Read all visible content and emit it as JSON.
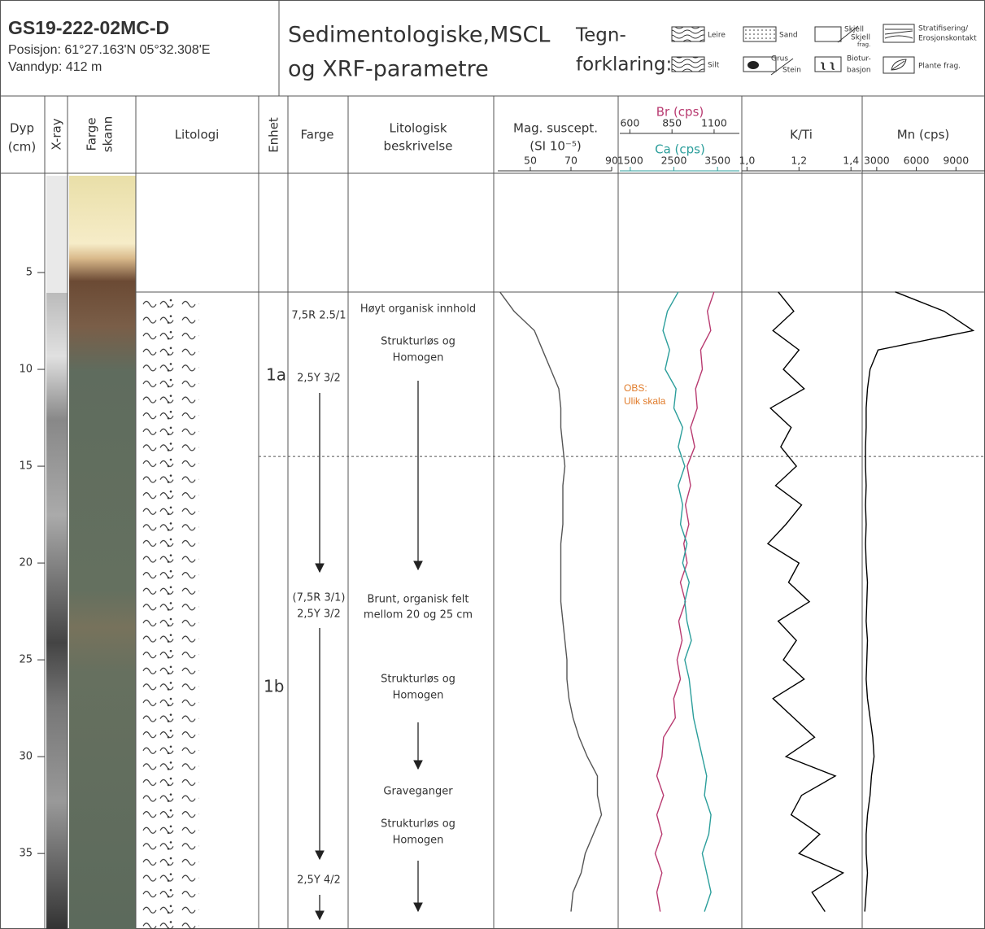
{
  "header": {
    "title": "GS19-222-02MC-D",
    "position": "Posisjon: 61°27.163'N 05°32.308'E",
    "water_depth": "Vanndyp: 412 m",
    "heading": [
      "Sedimentologiske,MSCL",
      "og XRF-parametre"
    ]
  },
  "legend": {
    "title": [
      "Tegn-",
      "forklaring:"
    ],
    "clay": "Leire",
    "silt": "Silt",
    "sand": "Sand",
    "gravel": [
      "Grus",
      "Stein"
    ],
    "shell": [
      "Skjell",
      "Skjell",
      "frag."
    ],
    "bioturbation": [
      "Biotur-",
      "basjon"
    ],
    "stratification": [
      "Stratifisering/",
      "Erosjonskontakt"
    ],
    "plant": "Plante frag."
  },
  "columns": {
    "depth": [
      "Dyp",
      "(cm)"
    ],
    "xray": "X-ray",
    "scan": [
      "Farge",
      "skann"
    ],
    "lithology": "Litologi",
    "unit": "Enhet",
    "color": "Farge",
    "description": [
      "Litologisk",
      "beskrivelse"
    ]
  },
  "depth_axis": {
    "ylim": [
      0,
      38.9
    ],
    "yticks": [
      5,
      10,
      15,
      20,
      25,
      30,
      35
    ],
    "unit_boundary": 14.5
  },
  "units": [
    "1a",
    "1b"
  ],
  "colors": [
    "7,5R 2.5/1",
    "2,5Y 3/2",
    "(7,5R 3/1)",
    "2,5Y 3/2",
    "2,5Y 4/2"
  ],
  "descriptions": [
    "Høyt organisk innhold",
    "Strukturløs og",
    "Homogen",
    "Brunt, organisk felt",
    "mellom 20 og 25 cm",
    "Strukturløs og",
    "Homogen",
    "Graveganger",
    "Strukturløs og",
    "Homogen"
  ],
  "note": [
    "OBS:",
    "Ulik skala"
  ],
  "chart_data": [
    {
      "type": "line",
      "xlabel": [
        "Mag. suscept.",
        "(SI 10⁻⁵)"
      ],
      "xlim": [
        34,
        90
      ],
      "xticks": [
        50,
        70,
        90
      ],
      "color": "#555555",
      "y": [
        6,
        7,
        8,
        9,
        10,
        11,
        12,
        13,
        14,
        15,
        16,
        17,
        18,
        19,
        20,
        21,
        22,
        23,
        24,
        25,
        26,
        27,
        28,
        29,
        30,
        31,
        32,
        33,
        34,
        35,
        36,
        37,
        38
      ],
      "values": [
        35,
        42,
        52,
        56,
        60,
        64,
        65,
        65,
        66,
        67,
        66,
        66,
        66,
        65,
        65,
        65,
        65,
        66,
        67,
        68,
        68,
        69,
        71,
        74,
        78,
        83,
        83,
        85,
        81,
        77,
        75,
        71,
        70
      ]
    },
    {
      "type": "line",
      "xlim": [
        540,
        1250
      ],
      "xticks": [
        600,
        850,
        1100
      ],
      "x2lim": [
        1260,
        4000
      ],
      "x2ticks": [
        1500,
        2500,
        3500
      ],
      "y": [
        6,
        7,
        8,
        9,
        10,
        11,
        12,
        13,
        14,
        15,
        16,
        17,
        18,
        19,
        20,
        21,
        22,
        23,
        24,
        25,
        26,
        27,
        28,
        29,
        30,
        31,
        32,
        33,
        34,
        35,
        36,
        37,
        38
      ],
      "series": [
        {
          "name": "Br (cps)",
          "color": "#b83a70",
          "values": [
            1100,
            1060,
            1080,
            1020,
            1030,
            990,
            1000,
            960,
            985,
            940,
            960,
            930,
            950,
            920,
            940,
            900,
            930,
            890,
            910,
            880,
            900,
            860,
            870,
            800,
            790,
            760,
            800,
            760,
            790,
            750,
            790,
            760,
            780
          ]
        },
        {
          "name": "Ca (cps)",
          "color": "#2b9e9b",
          "axis": "x2",
          "values": [
            2600,
            2350,
            2250,
            2400,
            2300,
            2550,
            2500,
            2700,
            2600,
            2750,
            2600,
            2700,
            2650,
            2800,
            2700,
            2850,
            2750,
            2800,
            2900,
            2750,
            2850,
            2900,
            2950,
            3050,
            3150,
            3250,
            3200,
            3350,
            3300,
            3150,
            3250,
            3350,
            3200
          ]
        }
      ]
    },
    {
      "type": "line",
      "xlabel": "K/Ti",
      "xlim": [
        0.98,
        1.44
      ],
      "xticks": [
        {
          "value": 1.0,
          "label": "1,0"
        },
        {
          "value": 1.2,
          "label": "1,2"
        },
        {
          "value": 1.4,
          "label": "1,4"
        }
      ],
      "color": "#000000",
      "y": [
        6,
        7,
        8,
        9,
        10,
        11,
        12,
        13,
        14,
        15,
        16,
        17,
        18,
        19,
        20,
        21,
        22,
        23,
        24,
        25,
        26,
        27,
        28,
        29,
        30,
        31,
        32,
        33,
        34,
        35,
        36,
        37,
        38
      ],
      "values": [
        1.12,
        1.18,
        1.1,
        1.2,
        1.14,
        1.22,
        1.09,
        1.17,
        1.13,
        1.19,
        1.11,
        1.21,
        1.15,
        1.08,
        1.2,
        1.16,
        1.24,
        1.12,
        1.19,
        1.14,
        1.22,
        1.1,
        1.18,
        1.26,
        1.15,
        1.34,
        1.21,
        1.17,
        1.28,
        1.2,
        1.37,
        1.25,
        1.3
      ]
    },
    {
      "type": "line",
      "xlabel": "Mn (cps)",
      "xlim": [
        1900,
        11200
      ],
      "xticks": [
        3000,
        6000,
        9000
      ],
      "color": "#000000",
      "y": [
        6,
        7,
        8,
        9,
        10,
        11,
        12,
        13,
        14,
        15,
        16,
        17,
        18,
        19,
        20,
        21,
        22,
        23,
        24,
        25,
        26,
        27,
        28,
        29,
        30,
        31,
        32,
        33,
        34,
        35,
        36,
        37,
        38
      ],
      "values": [
        4400,
        8100,
        10300,
        3100,
        2500,
        2300,
        2200,
        2200,
        2150,
        2150,
        2200,
        2150,
        2200,
        2150,
        2200,
        2300,
        2250,
        2200,
        2300,
        2250,
        2200,
        2300,
        2500,
        2700,
        2800,
        2600,
        2500,
        2300,
        2200,
        2200,
        2300,
        2200,
        2100
      ]
    }
  ]
}
